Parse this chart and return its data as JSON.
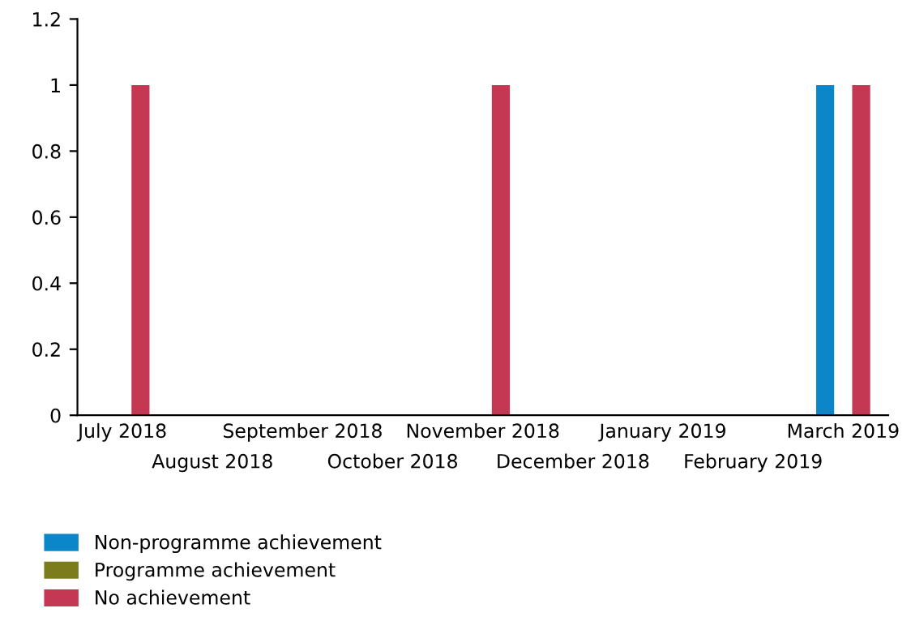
{
  "chart_data": {
    "type": "bar",
    "categories": [
      "July 2018",
      "August 2018",
      "September 2018",
      "October 2018",
      "November 2018",
      "December 2018",
      "January 2019",
      "February 2019",
      "March 2019"
    ],
    "series": [
      {
        "name": "Non-programme achievement",
        "color": "#0a86c9",
        "values": [
          0,
          0,
          0,
          0,
          0,
          0,
          0,
          0,
          1
        ]
      },
      {
        "name": "Programme achievement",
        "color": "#7c7c1c",
        "values": [
          0,
          0,
          0,
          0,
          0,
          0,
          0,
          0,
          0
        ]
      },
      {
        "name": "No achievement",
        "color": "#c53853",
        "values": [
          1,
          0,
          0,
          0,
          1,
          0,
          0,
          0,
          1
        ]
      }
    ],
    "ylim": [
      0,
      1.2
    ],
    "yticks": [
      0,
      0.2,
      0.4,
      0.6,
      0.8,
      1,
      1.2
    ],
    "grid": false,
    "legend": "bottom"
  }
}
